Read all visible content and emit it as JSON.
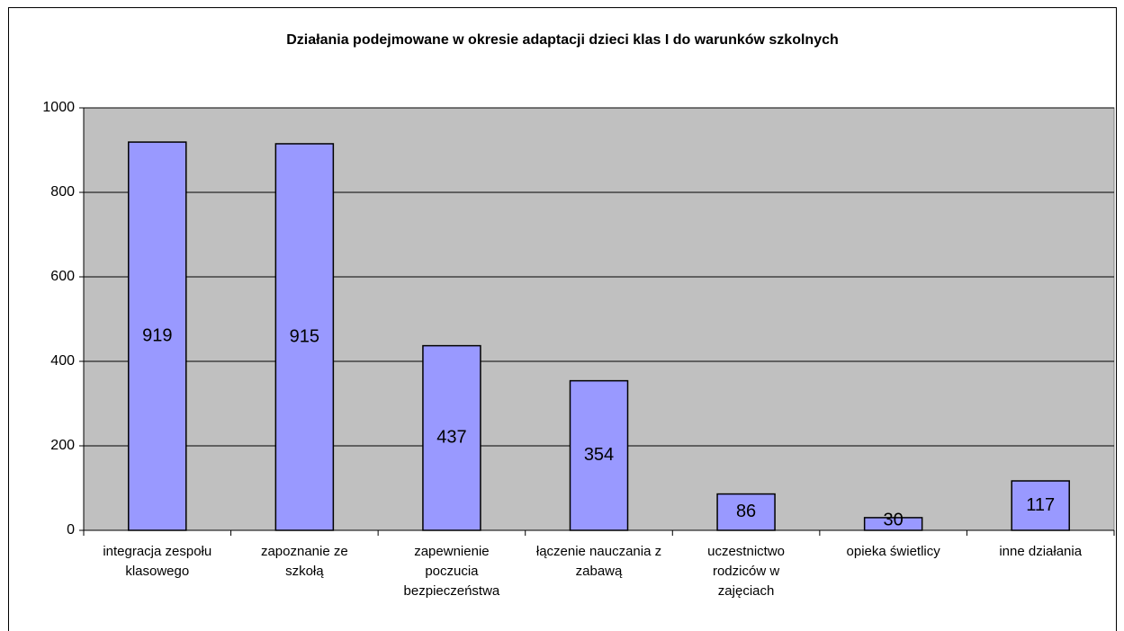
{
  "chart_data": {
    "type": "bar",
    "title": "Działania podejmowane w okresie adaptacji dzieci klas I do warunków szkolnych",
    "categories": [
      "integracja zespołu klasowego",
      "zapoznanie ze szkołą",
      "zapewnienie poczucia bezpieczeństwa",
      "łączenie nauczania z zabawą",
      "uczestnictwo rodziców w zajęciach",
      "opieka świetlicy",
      "inne działania"
    ],
    "values": [
      919,
      915,
      437,
      354,
      86,
      30,
      117
    ],
    "color": "#9999ff",
    "ylim": [
      0,
      1000
    ],
    "yticks": [
      0,
      200,
      400,
      600,
      800,
      1000
    ],
    "grid": true
  }
}
